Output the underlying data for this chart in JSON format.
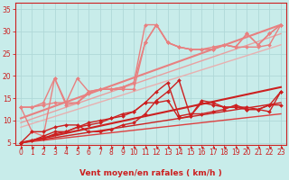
{
  "bg_color": "#c8ecea",
  "grid_color": "#b0d8d8",
  "xlabel": "Vent moyen/en rafales ( km/h )",
  "xlim": [
    -0.5,
    23.5
  ],
  "ylim": [
    4.5,
    36.5
  ],
  "yticks": [
    5,
    10,
    15,
    20,
    25,
    30,
    35
  ],
  "xticks": [
    0,
    1,
    2,
    3,
    4,
    5,
    6,
    7,
    8,
    9,
    10,
    11,
    12,
    13,
    14,
    15,
    16,
    17,
    18,
    19,
    20,
    21,
    22,
    23
  ],
  "series": [
    {
      "x": [
        0,
        1,
        2,
        3,
        4,
        5,
        6,
        7,
        8,
        9,
        10,
        11,
        12,
        13,
        14,
        15,
        16,
        17,
        18,
        19,
        20,
        21,
        22,
        23
      ],
      "y": [
        13.0,
        13.0,
        14.0,
        19.5,
        14.0,
        14.0,
        16.5,
        17.0,
        17.0,
        17.5,
        18.5,
        31.5,
        31.5,
        27.5,
        26.5,
        26.0,
        26.0,
        26.5,
        27.0,
        26.5,
        29.5,
        27.0,
        29.5,
        31.5
      ],
      "color": "#e88080",
      "lw": 1.0,
      "marker": "D",
      "ms": 2.0,
      "zorder": 4
    },
    {
      "x": [
        0,
        1,
        2,
        3,
        4,
        5,
        6,
        7,
        8,
        9,
        10,
        11,
        12,
        13,
        14,
        15,
        16,
        17,
        18,
        19,
        20,
        21,
        22,
        23
      ],
      "y": [
        13.0,
        7.5,
        6.5,
        19.5,
        13.5,
        14.0,
        16.0,
        17.0,
        17.0,
        17.0,
        17.0,
        27.5,
        31.5,
        27.5,
        26.5,
        26.0,
        26.0,
        26.0,
        27.0,
        26.5,
        26.5,
        26.5,
        27.0,
        31.5
      ],
      "color": "#e88080",
      "lw": 1.0,
      "marker": "D",
      "ms": 2.0,
      "zorder": 4
    },
    {
      "x": [
        0,
        1,
        2,
        3,
        4,
        5,
        6,
        7,
        8,
        9,
        10,
        11,
        12,
        13,
        14,
        15,
        16,
        17,
        18,
        19,
        20,
        21,
        22,
        23
      ],
      "y": [
        13.0,
        13.0,
        13.5,
        14.0,
        14.0,
        19.5,
        16.5,
        17.0,
        17.0,
        17.5,
        18.5,
        27.5,
        31.5,
        27.5,
        26.5,
        26.0,
        26.0,
        26.0,
        27.0,
        26.5,
        29.5,
        27.0,
        29.5,
        31.5
      ],
      "color": "#e88080",
      "lw": 1.0,
      "marker": "D",
      "ms": 2.0,
      "zorder": 4
    },
    {
      "x": [
        0,
        23
      ],
      "y": [
        10.5,
        31.5
      ],
      "color": "#e88080",
      "lw": 1.5,
      "marker": null,
      "ms": 0,
      "zorder": 3
    },
    {
      "x": [
        0,
        23
      ],
      "y": [
        9.5,
        29.5
      ],
      "color": "#e8a0a0",
      "lw": 1.0,
      "marker": null,
      "ms": 0,
      "zorder": 3
    },
    {
      "x": [
        0,
        23
      ],
      "y": [
        8.5,
        27.0
      ],
      "color": "#e8b0b0",
      "lw": 1.0,
      "marker": null,
      "ms": 0,
      "zorder": 3
    },
    {
      "x": [
        0,
        1,
        2,
        3,
        4,
        5,
        6,
        7,
        8,
        9,
        10,
        11,
        12,
        13,
        14,
        15,
        16,
        17,
        18,
        19,
        20,
        21,
        22,
        23
      ],
      "y": [
        5.0,
        7.5,
        7.5,
        8.5,
        9.0,
        9.0,
        7.5,
        7.5,
        8.0,
        9.0,
        9.5,
        11.5,
        14.5,
        16.5,
        19.0,
        11.0,
        14.0,
        13.5,
        13.0,
        13.0,
        13.0,
        12.5,
        13.5,
        16.5
      ],
      "color": "#cc2020",
      "lw": 1.0,
      "marker": "D",
      "ms": 2.0,
      "zorder": 5
    },
    {
      "x": [
        0,
        1,
        2,
        3,
        4,
        5,
        6,
        7,
        8,
        9,
        10,
        11,
        12,
        13,
        14,
        15,
        16,
        17,
        18,
        19,
        20,
        21,
        22,
        23
      ],
      "y": [
        5.0,
        5.5,
        6.5,
        7.5,
        7.5,
        8.5,
        9.0,
        9.5,
        10.5,
        11.0,
        12.0,
        14.0,
        14.0,
        14.5,
        10.5,
        11.0,
        14.5,
        14.0,
        13.0,
        13.0,
        12.5,
        12.5,
        13.5,
        13.5
      ],
      "color": "#cc2020",
      "lw": 1.0,
      "marker": "D",
      "ms": 2.0,
      "zorder": 5
    },
    {
      "x": [
        0,
        1,
        2,
        3,
        4,
        5,
        6,
        7,
        8,
        9,
        10,
        11,
        12,
        13,
        14,
        15,
        16,
        17,
        18,
        19,
        20,
        21,
        22,
        23
      ],
      "y": [
        5.0,
        5.5,
        6.0,
        7.0,
        7.5,
        8.5,
        9.5,
        10.0,
        10.5,
        11.5,
        12.0,
        14.0,
        16.5,
        18.5,
        11.0,
        11.5,
        11.5,
        12.0,
        12.5,
        13.5,
        12.5,
        12.5,
        12.0,
        16.5
      ],
      "color": "#cc2020",
      "lw": 1.0,
      "marker": "D",
      "ms": 2.0,
      "zorder": 5
    },
    {
      "x": [
        0,
        23
      ],
      "y": [
        5.0,
        17.5
      ],
      "color": "#cc2020",
      "lw": 1.5,
      "marker": null,
      "ms": 0,
      "zorder": 3
    },
    {
      "x": [
        0,
        23
      ],
      "y": [
        5.0,
        14.0
      ],
      "color": "#cc2020",
      "lw": 1.0,
      "marker": null,
      "ms": 0,
      "zorder": 3
    },
    {
      "x": [
        0,
        23
      ],
      "y": [
        5.0,
        11.5
      ],
      "color": "#dd4040",
      "lw": 1.0,
      "marker": null,
      "ms": 0,
      "zorder": 3
    }
  ],
  "arrow_color": "#cc2020",
  "axis_color": "#cc2020",
  "tick_color": "#cc2020",
  "xlabel_color": "#cc2020",
  "label_fontsize": 6.5,
  "tick_fontsize": 5.5
}
